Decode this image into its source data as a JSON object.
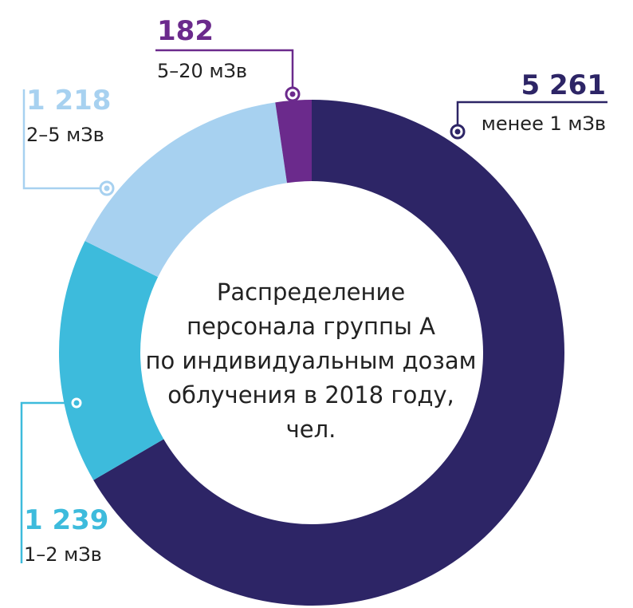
{
  "chart_data": {
    "type": "donut",
    "title_lines": [
      "Распределение",
      "персонала группы А",
      "по индивидуальным дозам",
      "облучения в 2018 году,",
      "чел."
    ],
    "series": [
      {
        "value": 5261,
        "value_label": "5 261",
        "category": "менее 1 мЗв",
        "color": "#2d2566"
      },
      {
        "value": 1239,
        "value_label": "1 239",
        "category": "1–2 мЗв",
        "color": "#3dbbdc"
      },
      {
        "value": 1218,
        "value_label": "1 218",
        "category": "2–5 мЗв",
        "color": "#a7d1f0"
      },
      {
        "value": 182,
        "value_label": "182",
        "category": "5–20 мЗв",
        "color": "#6b2a8c"
      }
    ],
    "label_text_color": "#222222"
  }
}
